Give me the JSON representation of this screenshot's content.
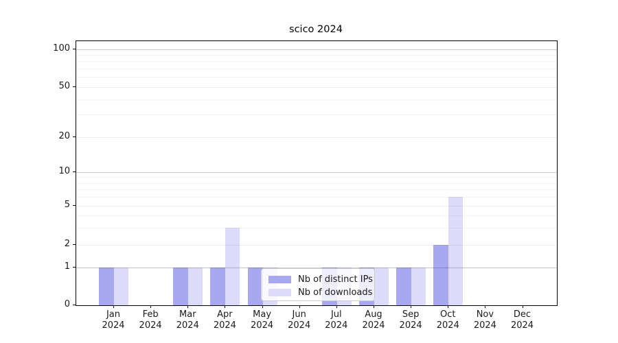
{
  "title": "scico 2024",
  "chart_data": {
    "type": "bar",
    "title": "scico 2024",
    "categories": [
      "Jan 2024",
      "Feb 2024",
      "Mar 2024",
      "Apr 2024",
      "May 2024",
      "Jun 2024",
      "Jul 2024",
      "Aug 2024",
      "Sep 2024",
      "Oct 2024",
      "Nov 2024",
      "Dec 2024"
    ],
    "months": [
      "Jan",
      "Feb",
      "Mar",
      "Apr",
      "May",
      "Jun",
      "Jul",
      "Aug",
      "Sep",
      "Oct",
      "Nov",
      "Dec"
    ],
    "year": "2024",
    "series": [
      {
        "name": "Nb of distinct IPs",
        "color": "#a8a8f0",
        "values": [
          1,
          0,
          1,
          1,
          1,
          0,
          1,
          1,
          1,
          2,
          0,
          0
        ]
      },
      {
        "name": "Nb of downloads",
        "color": "#dcdcfa",
        "values": [
          1,
          0,
          1,
          3,
          1,
          0,
          1,
          1,
          1,
          6,
          0,
          0
        ]
      }
    ],
    "y_axis": {
      "scale": "symlog",
      "tick_labels": [
        "0",
        "1",
        "2",
        "5",
        "10",
        "20",
        "50",
        "100"
      ],
      "ticks": [
        0,
        1,
        2,
        5,
        10,
        20,
        50,
        100
      ],
      "minor_ticks": [
        3,
        4,
        6,
        7,
        8,
        9,
        30,
        40,
        60,
        70,
        80,
        90
      ],
      "range": [
        0,
        130
      ]
    },
    "xlabel": "",
    "ylabel": "",
    "grid": true,
    "legend_position": "lower center"
  }
}
